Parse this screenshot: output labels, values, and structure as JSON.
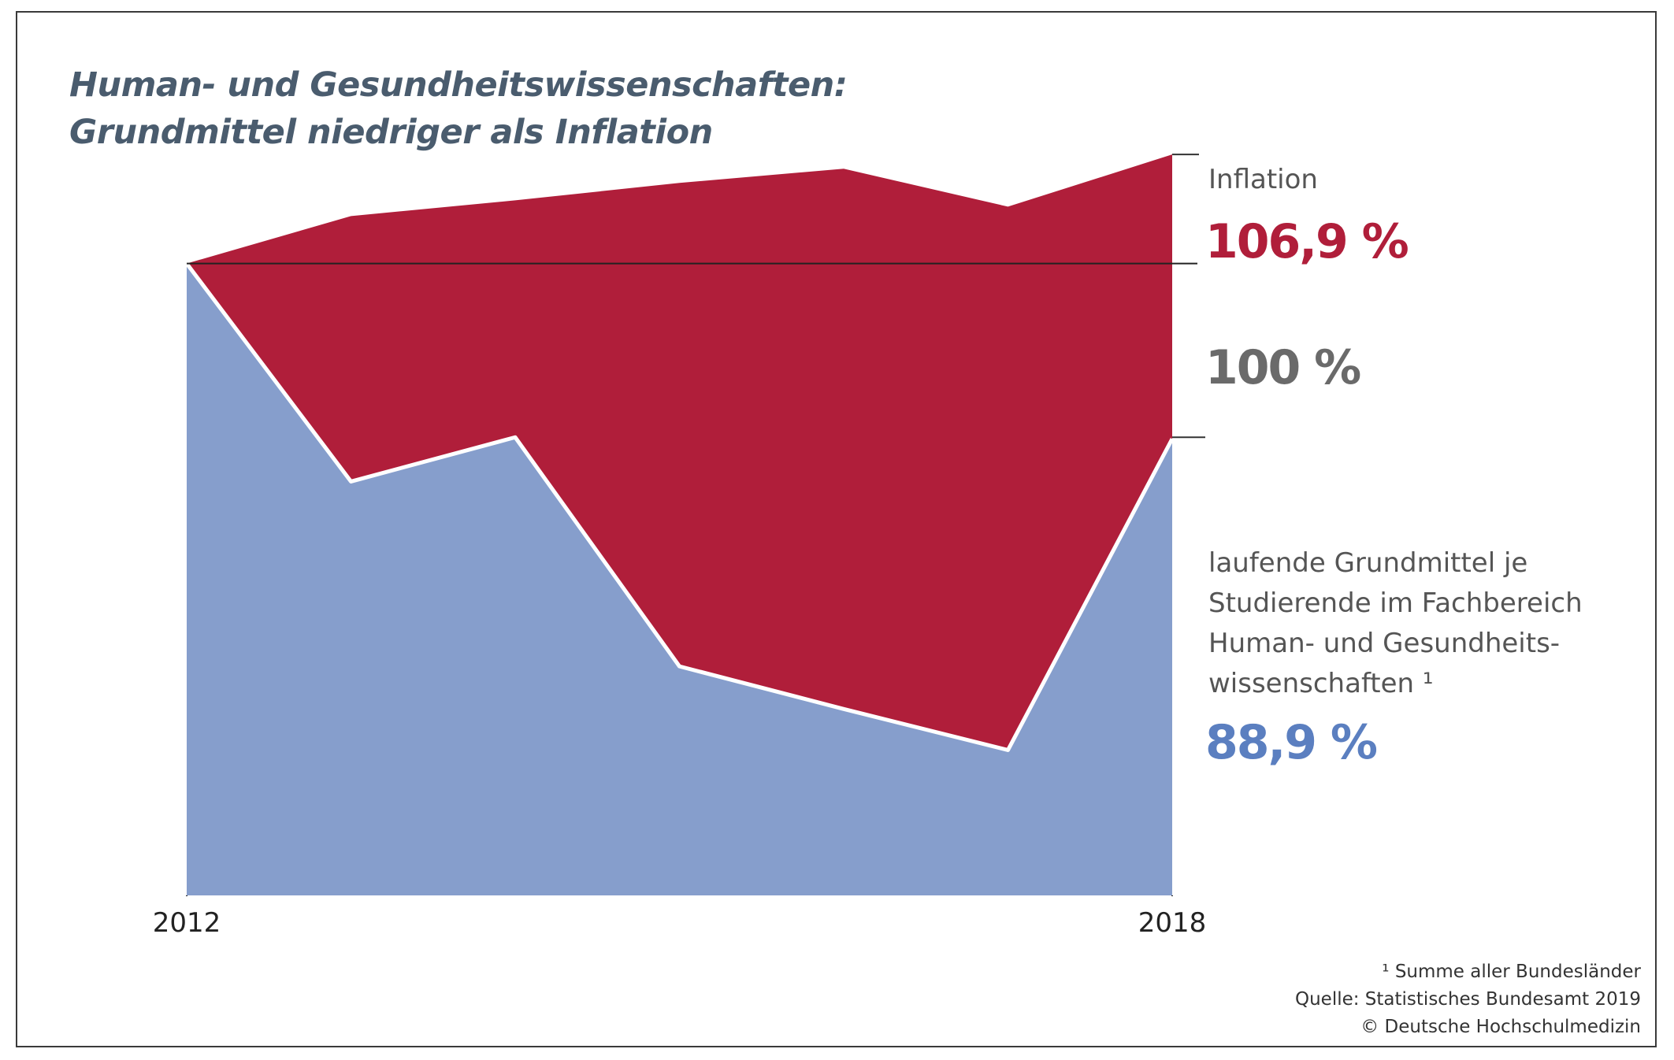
{
  "title": {
    "line1": "Human- und Gesundheitswissenschaften:",
    "line2": "Grundmittel niedriger als Inflation"
  },
  "labels": {
    "inflation_name": "Inflation",
    "inflation_value": "106,9 %",
    "baseline_value": "100 %",
    "funds_name_lines": [
      "laufende Grundmittel je",
      "Studierende im Fachbereich",
      "Human- und Gesundheits-",
      "wissenschaften ¹"
    ],
    "funds_value": "88,9 %"
  },
  "footnotes": [
    "¹ Summe aller Bundesländer",
    "Quelle: Statistisches Bundesamt 2019",
    "© Deutsche Hochschulmedizin"
  ],
  "colors": {
    "inflation": "#b01e3a",
    "funds": "#869ecc",
    "funds_value_text": "#5b7fc0",
    "baseline": "#222222",
    "title": "#4a5c6e"
  },
  "chart_data": {
    "type": "area",
    "title": "Human- und Gesundheitswissenschaften: Grundmittel niedriger als Inflation",
    "x": [
      2012,
      2013,
      2014,
      2015,
      2016,
      2017,
      2018
    ],
    "x_tick_labels": [
      "2012",
      "2018"
    ],
    "ylim": [
      60,
      110
    ],
    "reference_line": 100,
    "series": [
      {
        "name": "Inflation",
        "values": [
          100,
          103.0,
          104.0,
          105.1,
          106.0,
          103.6,
          106.9
        ]
      },
      {
        "name": "laufende Grundmittel je Studierende im Fachbereich Human- und Gesundheitswissenschaften",
        "values": [
          100,
          86.2,
          89.0,
          74.5,
          71.8,
          69.2,
          88.9
        ]
      }
    ],
    "grid": false,
    "legend": "direct labels right"
  }
}
